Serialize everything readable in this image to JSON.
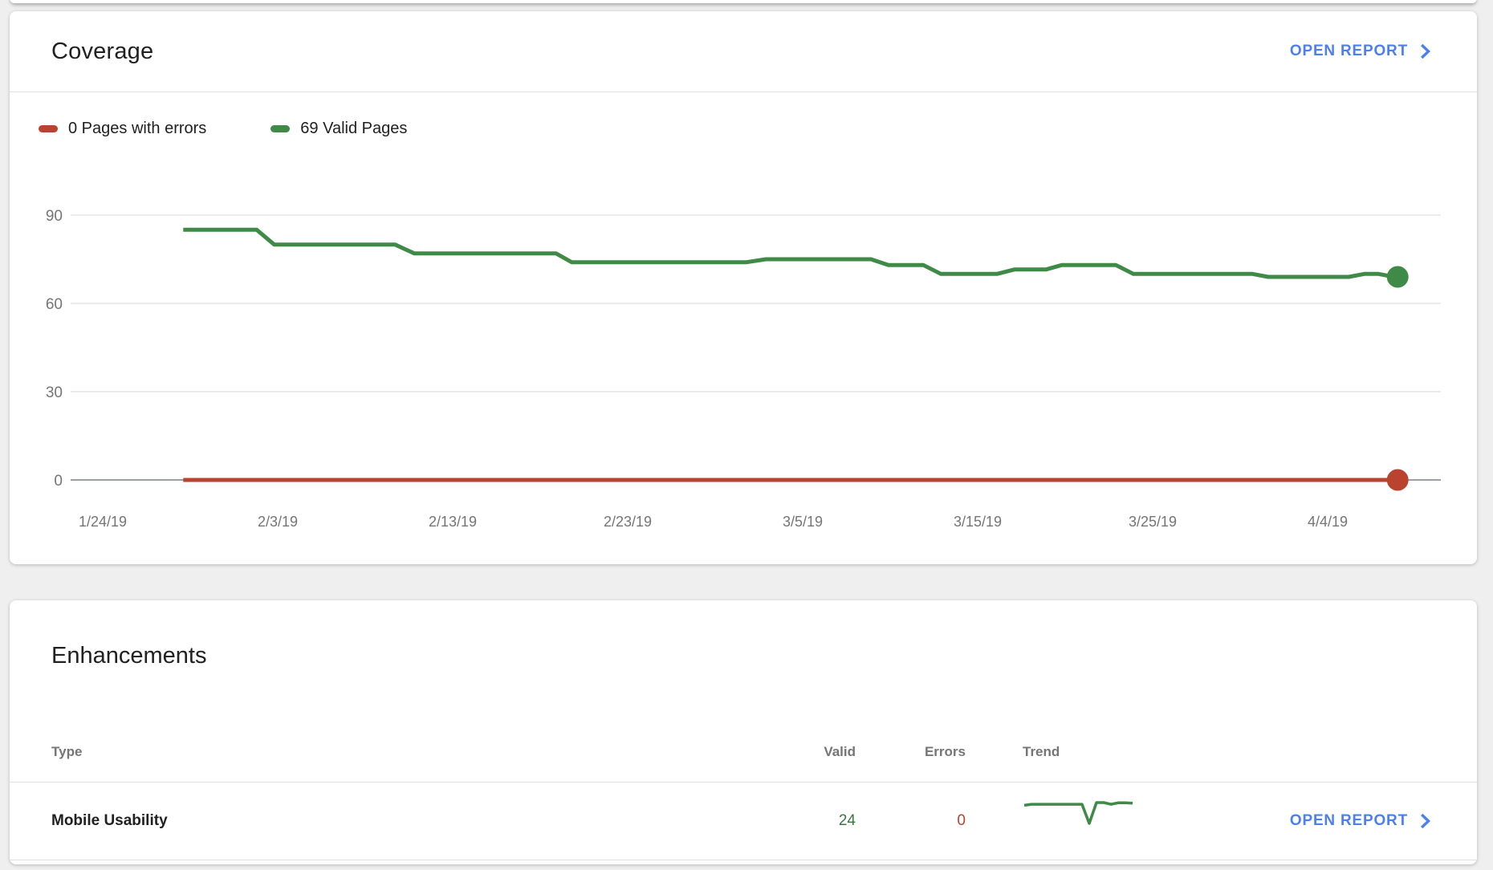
{
  "coverage_card": {
    "title": "Coverage",
    "open_report_label": "OPEN REPORT",
    "legend": [
      {
        "label": "0 Pages with errors",
        "color": "#b9432e"
      },
      {
        "label": "69 Valid Pages",
        "color": "#3f8a47"
      }
    ]
  },
  "enhancements_card": {
    "title": "Enhancements",
    "table": {
      "headers": {
        "type": "Type",
        "valid": "Valid",
        "errors": "Errors",
        "trend": "Trend"
      },
      "rows": [
        {
          "type": "Mobile Usability",
          "valid": "24",
          "errors": "0",
          "valid_color": "#37763f",
          "errors_color": "#b9432e",
          "open_report_label": "OPEN REPORT"
        }
      ]
    }
  },
  "chart_data": [
    {
      "type": "line",
      "title": "Coverage: pages over time",
      "x_tick_labels": [
        "1/24/19",
        "2/3/19",
        "2/13/19",
        "2/23/19",
        "3/5/19",
        "3/15/19",
        "3/25/19",
        "4/4/19"
      ],
      "x_tick_days": [
        0,
        10,
        20,
        30,
        40,
        50,
        60,
        70
      ],
      "y_ticks": [
        0,
        30,
        60,
        90
      ],
      "ylim": [
        0,
        105
      ],
      "grid": "horizontal",
      "grid_color": "#ebebeb",
      "axis_color": "#9aa0a6",
      "tick_color": "#757575",
      "legend_position": "top-left",
      "series": [
        {
          "name": "Pages with errors",
          "color": "#b9432e",
          "end_value": 0,
          "points": [
            [
              4.6,
              0
            ],
            [
              74,
              0
            ]
          ]
        },
        {
          "name": "Valid Pages",
          "color": "#3f8a47",
          "end_value": 69,
          "points": [
            [
              4.6,
              85
            ],
            [
              8.8,
              85
            ],
            [
              9.8,
              80
            ],
            [
              16.7,
              80
            ],
            [
              17.8,
              77
            ],
            [
              25.9,
              77
            ],
            [
              26.8,
              74
            ],
            [
              36.8,
              74
            ],
            [
              37.9,
              75
            ],
            [
              43.9,
              75
            ],
            [
              44.9,
              73
            ],
            [
              46.9,
              73
            ],
            [
              47.9,
              70
            ],
            [
              51.1,
              70
            ],
            [
              52.1,
              71.5
            ],
            [
              53.9,
              71.5
            ],
            [
              54.8,
              73
            ],
            [
              57.9,
              73
            ],
            [
              58.9,
              70
            ],
            [
              65.7,
              70
            ],
            [
              66.6,
              69
            ],
            [
              71.2,
              69
            ],
            [
              72.1,
              70
            ],
            [
              72.9,
              70
            ],
            [
              73.8,
              69
            ],
            [
              74,
              69
            ]
          ]
        }
      ]
    },
    {
      "type": "line",
      "title": "Mobile Usability valid-pages trend",
      "color": "#3f8a47",
      "values": [
        23.6,
        24,
        24,
        24,
        24,
        24,
        24,
        24,
        24,
        17,
        24.6,
        24.6,
        24,
        24.5,
        24.5,
        24.4
      ]
    }
  ]
}
